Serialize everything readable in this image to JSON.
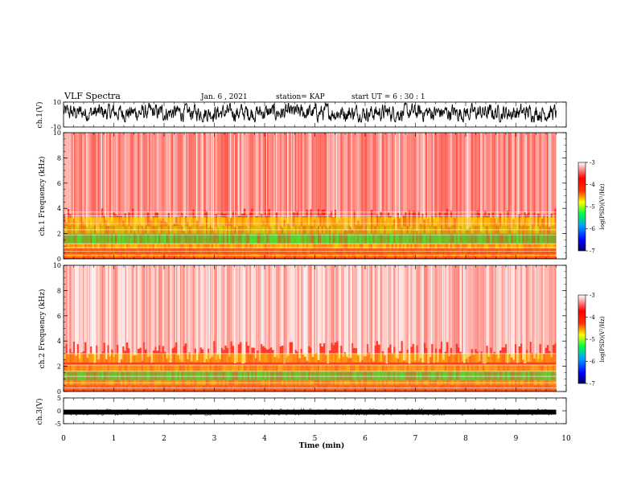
{
  "header": {
    "title": "VLF Spectra",
    "date": "Jan. 6 , 2021",
    "station": "station= KAP",
    "start_ut": "start  UT =   6 : 30 : 1"
  },
  "colors": {
    "colormap": [
      "#000080",
      "#0000ff",
      "#00b0ff",
      "#00ff40",
      "#ffff00",
      "#ff2a00",
      "#ff0000",
      "#ffffff"
    ]
  },
  "chart_data": [
    {
      "type": "line",
      "name": "ch1-waveform",
      "ylabel": "ch.1(V)",
      "ylim": [
        -10,
        10
      ],
      "yticks": [
        "10",
        "-10"
      ],
      "xlim": [
        0,
        10
      ],
      "description_level": "noisy waveform fluctuating roughly between -5 and +8 V"
    },
    {
      "type": "heatmap",
      "name": "ch1-spectrogram",
      "ylabel": "ch.1 Frequency (kHz)",
      "ylim": [
        0,
        10
      ],
      "yticks": [
        "0",
        "2",
        "4",
        "6",
        "8",
        "10"
      ],
      "xlim": [
        0,
        10
      ],
      "data_end_min": 9.8,
      "colorbar": {
        "label": "log(PSD)(V²/Hz)",
        "range": [
          -7,
          -3
        ],
        "ticks": [
          "-3",
          "-4",
          "-5",
          "-6",
          "-7"
        ]
      }
    },
    {
      "type": "heatmap",
      "name": "ch2-spectrogram",
      "ylabel": "ch.2 Frequency (kHz)",
      "ylim": [
        0,
        10
      ],
      "yticks": [
        "0",
        "2",
        "4",
        "6",
        "8",
        "10"
      ],
      "xlim": [
        0,
        10
      ],
      "data_end_min": 9.8,
      "colorbar": {
        "label": "log(PSD)(V²/Hz)",
        "range": [
          -7,
          -3
        ],
        "ticks": [
          "-3",
          "-4",
          "-5",
          "-6",
          "-7"
        ]
      }
    },
    {
      "type": "line",
      "name": "ch3-waveform",
      "ylabel": "ch.3(V)",
      "ylim": [
        -5,
        5
      ],
      "yticks": [
        "5",
        "0",
        "-5"
      ],
      "xlim": [
        0,
        10
      ],
      "description_level": "flat dense trace near -0.5 V"
    }
  ],
  "xaxis": {
    "label": "Time  (min)",
    "ticks": [
      "0",
      "1",
      "2",
      "3",
      "4",
      "5",
      "6",
      "7",
      "8",
      "9",
      "10"
    ]
  }
}
